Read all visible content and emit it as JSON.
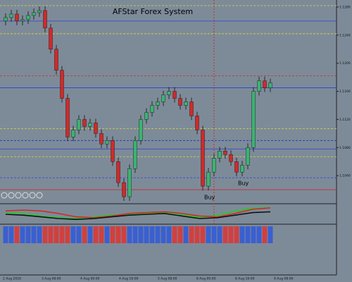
{
  "chart_data": {
    "type": "candlestick",
    "title": "AFStar Forex System",
    "open": [
      1.126,
      1.1265,
      1.127,
      1.126,
      1.1262,
      1.1268,
      1.1272,
      1.1275,
      1.125,
      1.122,
      1.119,
      1.115,
      1.1095,
      1.1105,
      1.112,
      1.111,
      1.1115,
      1.11,
      1.1085,
      1.109,
      1.106,
      1.103,
      1.101,
      1.105,
      1.109,
      1.112,
      1.113,
      1.114,
      1.1145,
      1.1155,
      1.116,
      1.115,
      1.114,
      1.1145,
      1.1125,
      1.1105,
      1.1025,
      1.1045,
      1.1065,
      1.1075,
      1.107,
      1.106,
      1.1045,
      1.1055,
      1.108,
      1.116,
      1.1175,
      1.1165
    ],
    "high": [
      1.1271,
      1.1276,
      1.1276,
      1.1268,
      1.1274,
      1.1278,
      1.1281,
      1.1281,
      1.1256,
      1.1226,
      1.1196,
      1.1156,
      1.1111,
      1.1126,
      1.1126,
      1.1121,
      1.1121,
      1.1106,
      1.1096,
      1.1096,
      1.1066,
      1.1036,
      1.1056,
      1.1096,
      1.1126,
      1.1136,
      1.1146,
      1.1151,
      1.1161,
      1.1166,
      1.1166,
      1.1156,
      1.1151,
      1.1151,
      1.1131,
      1.1111,
      1.1051,
      1.1071,
      1.1081,
      1.1081,
      1.1076,
      1.1066,
      1.1061,
      1.1086,
      1.1166,
      1.1181,
      1.1181,
      1.1178
    ],
    "low": [
      1.1254,
      1.1259,
      1.1254,
      1.1254,
      1.1256,
      1.1262,
      1.1266,
      1.1244,
      1.1214,
      1.1184,
      1.1144,
      1.1089,
      1.1089,
      1.1099,
      1.1104,
      1.1104,
      1.1094,
      1.1079,
      1.1079,
      1.1054,
      1.1024,
      1.1004,
      1.1004,
      1.1044,
      1.1084,
      1.1114,
      1.1124,
      1.1134,
      1.1139,
      1.1149,
      1.1144,
      1.1134,
      1.1134,
      1.1119,
      1.1099,
      1.1019,
      1.1019,
      1.1039,
      1.1059,
      1.1064,
      1.1054,
      1.1039,
      1.1039,
      1.1049,
      1.1074,
      1.1154,
      1.1159,
      1.1159
    ],
    "close": [
      1.1265,
      1.127,
      1.126,
      1.1262,
      1.1268,
      1.1272,
      1.1275,
      1.125,
      1.122,
      1.119,
      1.115,
      1.1095,
      1.1105,
      1.112,
      1.111,
      1.1115,
      1.11,
      1.1085,
      1.109,
      1.106,
      1.103,
      1.101,
      1.105,
      1.109,
      1.112,
      1.113,
      1.114,
      1.1145,
      1.1155,
      1.116,
      1.115,
      1.114,
      1.1145,
      1.1125,
      1.1105,
      1.1025,
      1.1045,
      1.1065,
      1.1075,
      1.107,
      1.106,
      1.1045,
      1.1055,
      1.108,
      1.116,
      1.1175,
      1.1165,
      1.1172
    ],
    "up_color": "#3cb371",
    "down_color": "#d02a2a",
    "ylim": [
      1.1,
      1.129
    ],
    "yticks": [
      {
        "value": 1.104,
        "label": "1.1040"
      },
      {
        "value": 1.108,
        "label": "1.1080"
      },
      {
        "value": 1.112,
        "label": "1.1120"
      },
      {
        "value": 1.116,
        "label": "1.1160"
      },
      {
        "value": 1.12,
        "label": "1.1200"
      },
      {
        "value": 1.124,
        "label": "1.1240"
      },
      {
        "value": 1.128,
        "label": "1.1280"
      }
    ],
    "levels": [
      {
        "value": 1.1282,
        "color": "#d6d640"
      },
      {
        "value": 1.126,
        "color": "#2a3fd0"
      },
      {
        "value": 1.1242,
        "color": "#d6d640"
      },
      {
        "value": 1.1182,
        "color": "#d02a2a"
      },
      {
        "value": 1.1165,
        "color": "#2a3fd0"
      },
      {
        "value": 1.1107,
        "color": "#d6d640"
      },
      {
        "value": 1.109,
        "color": "#1a2fc0"
      },
      {
        "value": 1.1078,
        "color": "#2a3fd0"
      },
      {
        "value": 1.1067,
        "color": "#d6d640"
      },
      {
        "value": 1.1037,
        "color": "#2a3fd0"
      },
      {
        "value": 1.102,
        "color": "#d02a2a"
      }
    ],
    "signals": [
      {
        "label": "Buy",
        "index": 35
      },
      {
        "label": "Buy",
        "index": 41
      }
    ],
    "indicator": {
      "ylim": [
        0,
        100
      ],
      "series": [
        {
          "color": "#22cc22",
          "values": [
            60,
            55,
            40,
            30,
            25,
            35,
            45,
            50,
            55,
            60,
            50,
            30,
            45,
            70,
            85,
            90
          ]
        },
        {
          "color": "#d02a2a",
          "values": [
            70,
            75,
            70,
            55,
            35,
            30,
            40,
            55,
            60,
            65,
            55,
            40,
            35,
            55,
            80,
            88
          ]
        },
        {
          "color": "#111111",
          "values": [
            50,
            45,
            35,
            25,
            20,
            25,
            35,
            45,
            50,
            55,
            40,
            25,
            30,
            45,
            60,
            65
          ]
        }
      ]
    },
    "time_labels": [
      "2 Aug 2016",
      "3 Aug 08:00",
      "4 Aug 00:00",
      "4 Aug 16:00",
      "5 Aug 08:00",
      "8 Aug 00:00",
      "8 Aug 16:00",
      "9 Aug 08:00"
    ]
  }
}
